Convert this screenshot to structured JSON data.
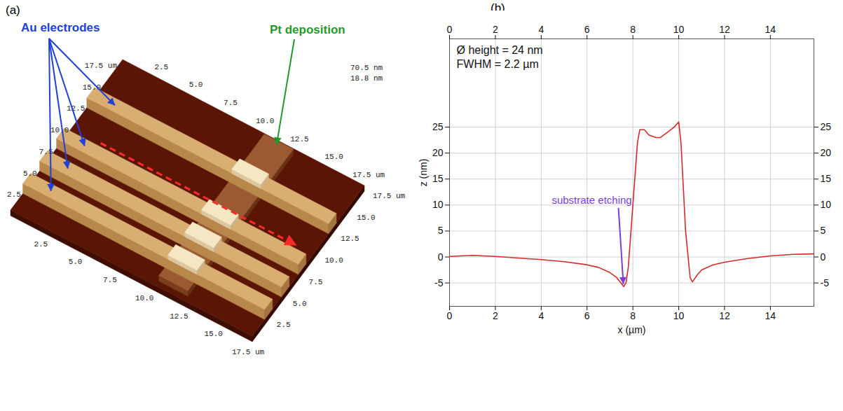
{
  "chart_data": {
    "type": "line",
    "x_label": "x (µm)",
    "y_label": "z (nm)",
    "x": [
      0,
      1,
      2,
      3,
      4,
      5,
      6,
      6.5,
      7,
      7.3,
      7.6,
      7.7,
      7.8,
      8.0,
      8.2,
      8.3,
      8.5,
      8.7,
      9.0,
      9.2,
      9.5,
      9.8,
      10.0,
      10.1,
      10.3,
      10.5,
      10.6,
      10.8,
      11,
      11.5,
      12,
      13,
      14,
      15,
      15.9
    ],
    "values": [
      0.1,
      0.3,
      0.1,
      -0.2,
      -0.5,
      -0.9,
      -1.5,
      -2,
      -3,
      -4,
      -5.7,
      -5,
      -2,
      10,
      22,
      24.5,
      24.5,
      23.5,
      23,
      23,
      24,
      25,
      26,
      22,
      5,
      -4,
      -4.8,
      -3.5,
      -2.5,
      -1.5,
      -1,
      -0.3,
      0.2,
      0.5,
      0.6
    ],
    "color": "#d42a2a",
    "xlim": [
      0,
      15.9
    ],
    "xticks": [
      0,
      2,
      4,
      6,
      8,
      10,
      12,
      14
    ],
    "ylim": [
      -9.5,
      42
    ],
    "yticks": [
      -5,
      0,
      5,
      10,
      15,
      20,
      25
    ],
    "grid": true,
    "annotations": [
      {
        "text": "Ø height = 24 nm"
      },
      {
        "text": "FWHM = 2.2 µm"
      },
      {
        "text": "substrate etching",
        "x": 7.6,
        "y": -5.7
      }
    ]
  },
  "figure": {
    "panel_labels": [
      "(a)",
      "(b)"
    ],
    "afm": {
      "labels": [
        {
          "text": "Au electrodes"
        },
        {
          "text": "Pt deposition"
        }
      ],
      "edge_ticks": [
        "2.5",
        "5.0",
        "7.5",
        "10.0",
        "12.5",
        "15.0",
        "17.5 um"
      ],
      "z_labels": [
        "70.5 nm",
        "18.8 nm"
      ]
    }
  }
}
